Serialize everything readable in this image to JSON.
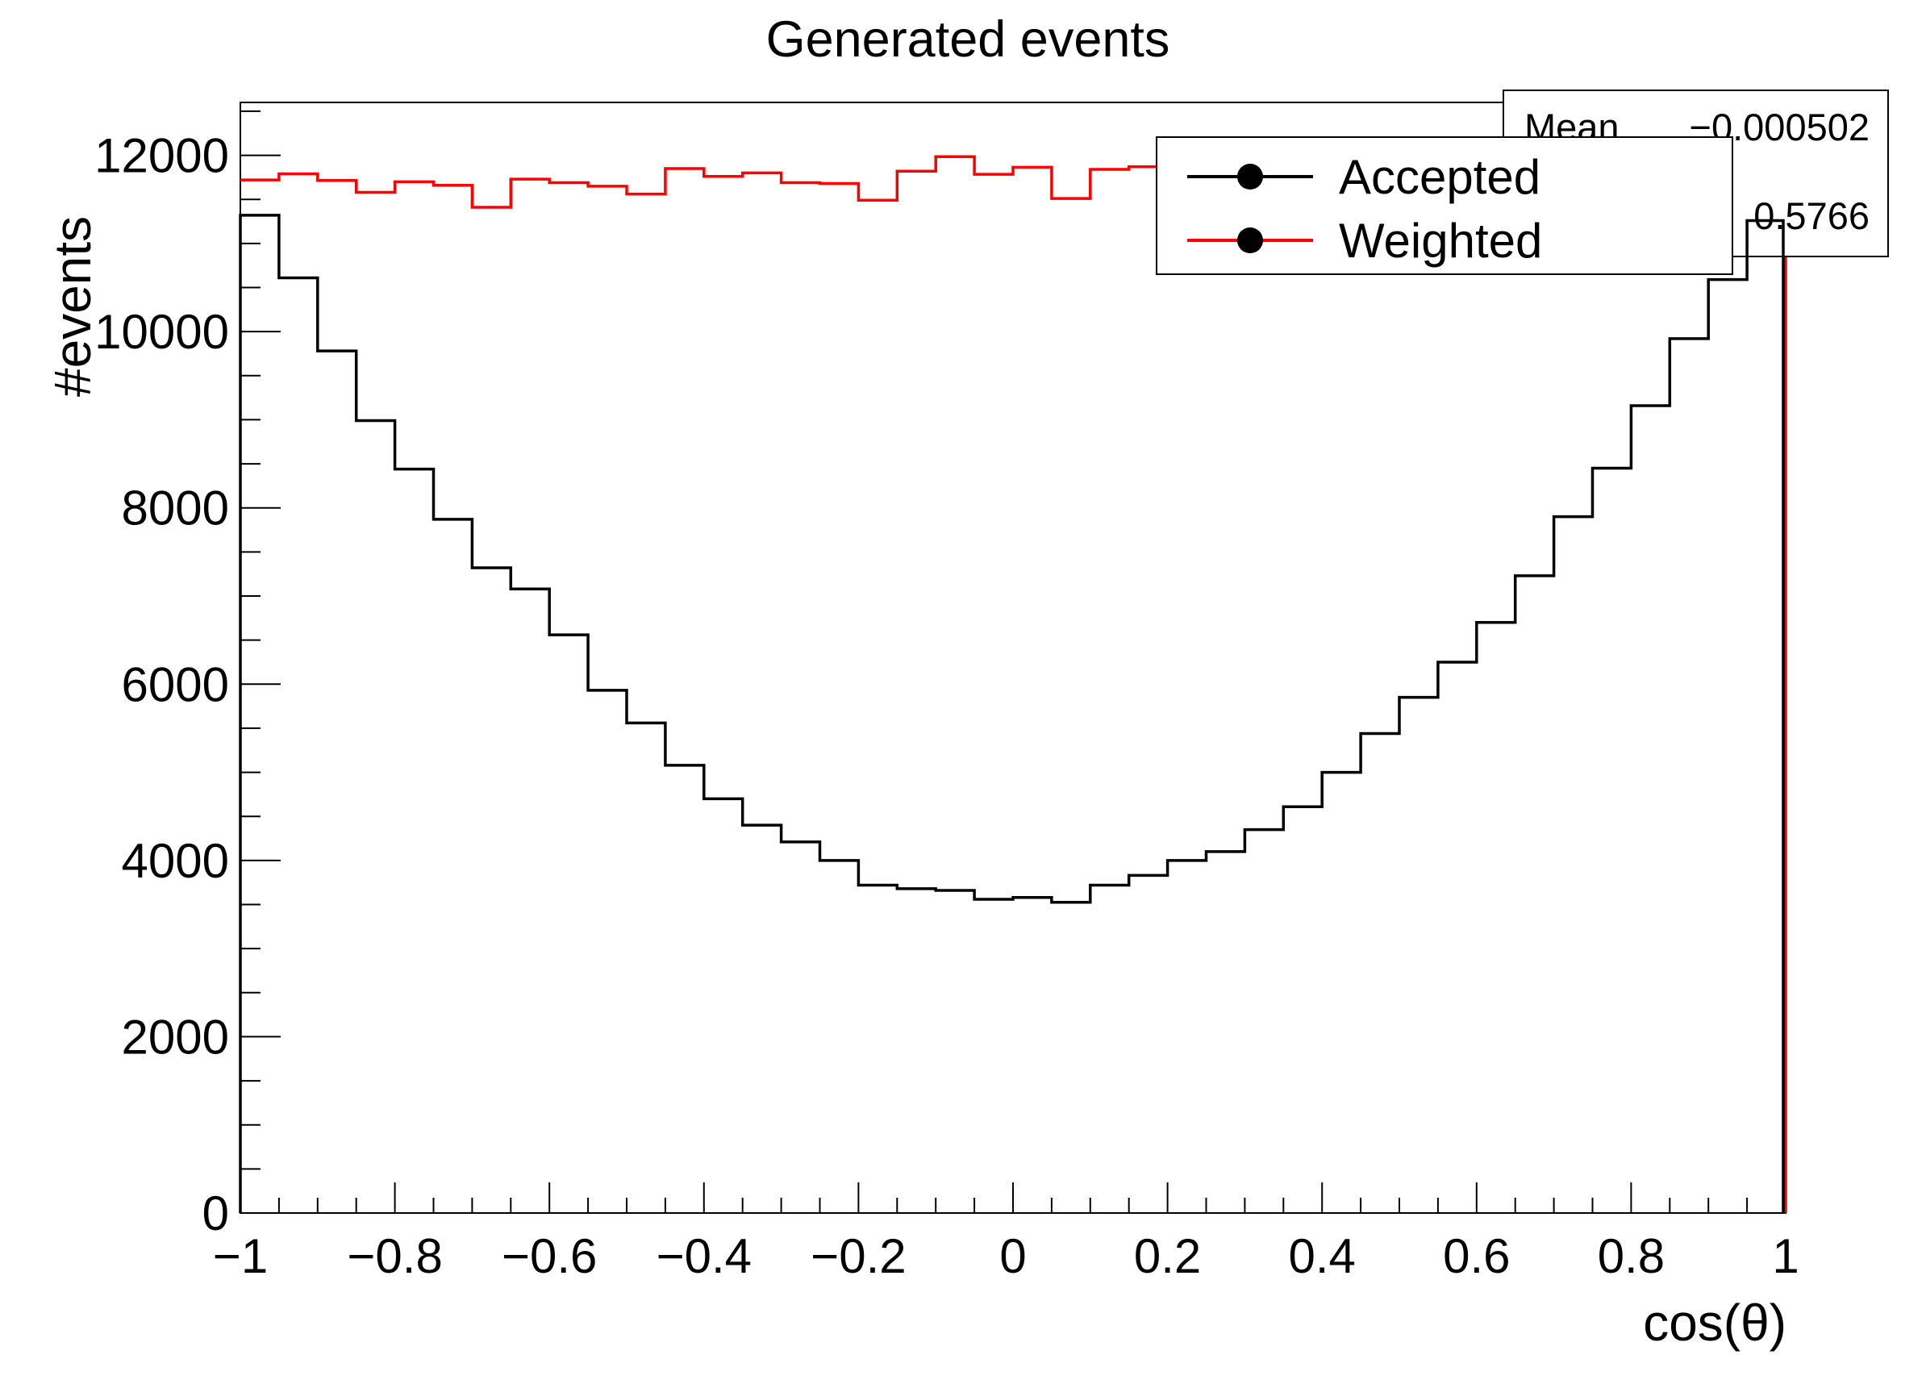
{
  "title": "Generated events",
  "axes": {
    "x": {
      "title": "cos(θ)",
      "min": -1,
      "max": 1,
      "major_ticks": [
        -1,
        -0.8,
        -0.6,
        -0.4,
        -0.2,
        0,
        0.2,
        0.4,
        0.6,
        0.8,
        1
      ],
      "tick_labels": [
        "−1",
        "−0.8",
        "−0.6",
        "−0.4",
        "−0.2",
        "0",
        "0.2",
        "0.4",
        "0.6",
        "0.8",
        "1"
      ],
      "minor_step": 0.05
    },
    "y": {
      "title": "#events",
      "min": 0,
      "max": 12600,
      "major_ticks": [
        0,
        2000,
        4000,
        6000,
        8000,
        10000,
        12000
      ],
      "tick_labels": [
        "0",
        "2000",
        "4000",
        "6000",
        "8000",
        "10000",
        "12000"
      ],
      "minor_step": 500
    }
  },
  "legend": {
    "entries": [
      {
        "label": "Accepted",
        "color": "#000000",
        "marker": "filled-circle",
        "marker_color": "#000000"
      },
      {
        "label": "Weighted",
        "color": "#ff0000",
        "marker": "filled-circle",
        "marker_color": "#000000"
      }
    ]
  },
  "stats_box": {
    "rows": [
      {
        "label": "Mean",
        "value": "−0.000502"
      },
      {
        "label": "",
        "value": "0.5766"
      }
    ]
  },
  "colors": {
    "background": "#ffffff",
    "frame": "#000000",
    "accepted": "#000000",
    "weighted": "#ff0000"
  },
  "chart_data": {
    "type": "histogram-step",
    "title": "Generated events",
    "xlabel": "cos(θ)",
    "ylabel": "#events",
    "xlim": [
      -1,
      1
    ],
    "ylim": [
      0,
      12600
    ],
    "n_bins": 40,
    "bin_edges": [
      -1.0,
      -0.95,
      -0.9,
      -0.85,
      -0.8,
      -0.75,
      -0.7,
      -0.65,
      -0.6,
      -0.55,
      -0.5,
      -0.45,
      -0.4,
      -0.35,
      -0.3,
      -0.25,
      -0.2,
      -0.15,
      -0.1,
      -0.05,
      0.0,
      0.05,
      0.1,
      0.15,
      0.2,
      0.25,
      0.3,
      0.35,
      0.4,
      0.45,
      0.5,
      0.55,
      0.6,
      0.65,
      0.7,
      0.75,
      0.8,
      0.85,
      0.9,
      0.95,
      1.0
    ],
    "series": [
      {
        "name": "Accepted",
        "color": "#000000",
        "values": [
          11320,
          10610,
          9780,
          8990,
          8440,
          7870,
          7320,
          7080,
          6560,
          5930,
          5560,
          5080,
          4700,
          4400,
          4210,
          4000,
          3720,
          3680,
          3660,
          3560,
          3580,
          3525,
          3720,
          3830,
          4000,
          4100,
          4350,
          4610,
          5000,
          5440,
          5850,
          6250,
          6700,
          7230,
          7900,
          8450,
          9160,
          9920,
          10590,
          11260
        ]
      },
      {
        "name": "Weighted",
        "color": "#ff0000",
        "values": [
          11720,
          11790,
          11715,
          11580,
          11700,
          11660,
          11410,
          11730,
          11690,
          11650,
          11560,
          11850,
          11760,
          11800,
          11690,
          11680,
          11490,
          11820,
          11985,
          11785,
          11865,
          11510,
          11840,
          11870,
          11820,
          11840,
          11780,
          11750,
          11800,
          11760,
          11820,
          11780,
          11850,
          11800,
          11760,
          11820,
          11790,
          11810,
          11770,
          11800
        ]
      }
    ],
    "legend_position": "top-right",
    "grid": false,
    "stats": {
      "mean_text": "−0.000502",
      "second_value_text": "0.5766"
    }
  }
}
